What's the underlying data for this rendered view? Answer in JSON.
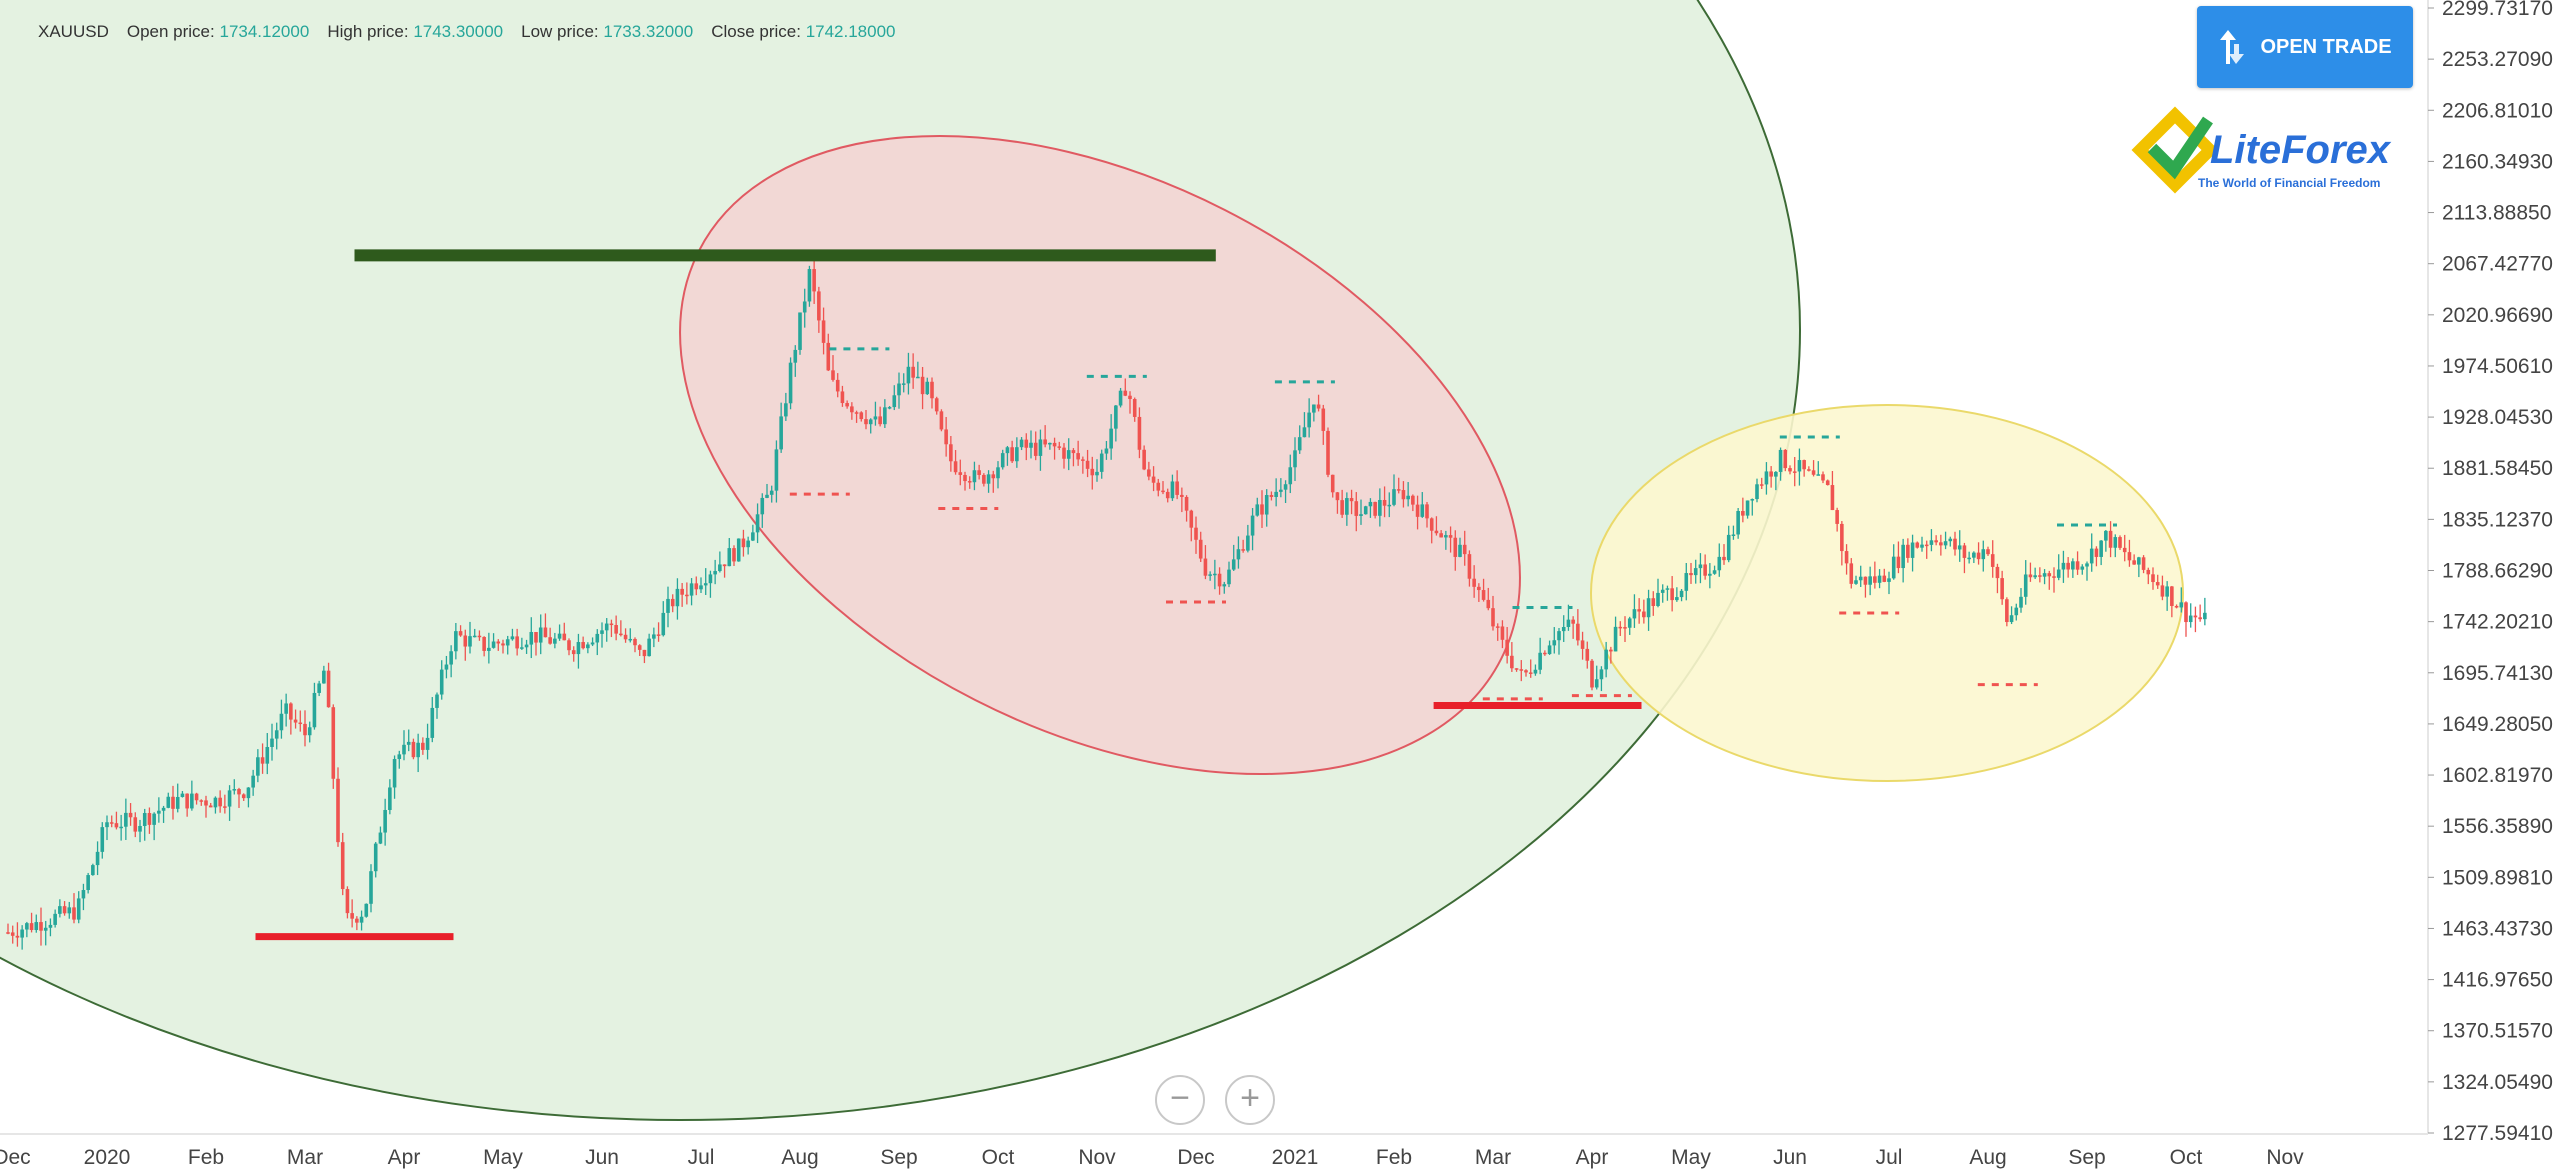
{
  "symbol": "XAUUSD",
  "ohlc": [
    {
      "label": "Open price:",
      "value": "1734.12000"
    },
    {
      "label": "High price:",
      "value": "1743.30000"
    },
    {
      "label": "Low price:",
      "value": "1733.32000"
    },
    {
      "label": "Close price:",
      "value": "1742.18000"
    }
  ],
  "open_trade_label": "OPEN TRADE",
  "logo": {
    "brand": "LiteForex",
    "tagline": "The World of Financial Freedom",
    "mark": "®"
  },
  "zoom": {
    "out": "−",
    "in": "+"
  },
  "colors": {
    "up": "#26a69a",
    "down": "#ef5350",
    "resistance": "#2e5a1c",
    "support": "#e8202a",
    "big_ellipse": "#dff0dc",
    "red_ellipse": "#f5d4d2",
    "yellow_ellipse": "#fcf7cf"
  },
  "chart_data": {
    "type": "candlestick",
    "symbol": "XAUUSD",
    "y_ticks": [
      "2299.73170",
      "2253.27090",
      "2206.81010",
      "2160.34930",
      "2113.88850",
      "2067.42770",
      "2020.96690",
      "1974.50610",
      "1928.04530",
      "1881.58450",
      "1835.12370",
      "1788.66290",
      "1742.20210",
      "1695.74130",
      "1649.28050",
      "1602.81970",
      "1556.35890",
      "1509.89810",
      "1463.43730",
      "1416.97650",
      "1370.51570",
      "1324.05490",
      "1277.59410"
    ],
    "ylim": [
      1277.5941,
      2299.7317
    ],
    "x_ticks": [
      "Dec",
      "2020",
      "Feb",
      "Mar",
      "Apr",
      "May",
      "Jun",
      "Jul",
      "Aug",
      "Sep",
      "Oct",
      "Nov",
      "Dec",
      "2021",
      "Feb",
      "Mar",
      "Apr",
      "May",
      "Jun",
      "Jul",
      "Aug",
      "Sep",
      "Oct",
      "Nov"
    ],
    "x_tick_months": [
      0,
      1,
      2,
      3,
      4,
      5,
      6,
      7,
      8,
      9,
      10,
      11,
      12,
      13,
      14,
      15,
      16,
      17,
      18,
      19,
      20,
      21,
      22,
      23
    ],
    "price_path": [
      [
        0.0,
        1460
      ],
      [
        0.7,
        1480
      ],
      [
        1.0,
        1560
      ],
      [
        1.3,
        1560
      ],
      [
        1.7,
        1580
      ],
      [
        2.1,
        1580
      ],
      [
        2.4,
        1590
      ],
      [
        2.8,
        1660
      ],
      [
        3.0,
        1640
      ],
      [
        3.2,
        1700
      ],
      [
        3.4,
        1470
      ],
      [
        3.6,
        1480
      ],
      [
        3.9,
        1620
      ],
      [
        4.2,
        1630
      ],
      [
        4.5,
        1730
      ],
      [
        4.8,
        1720
      ],
      [
        5.3,
        1730
      ],
      [
        5.7,
        1720
      ],
      [
        6.1,
        1740
      ],
      [
        6.4,
        1710
      ],
      [
        6.7,
        1760
      ],
      [
        7.1,
        1790
      ],
      [
        7.4,
        1810
      ],
      [
        7.7,
        1860
      ],
      [
        7.9,
        1970
      ],
      [
        8.1,
        2060
      ],
      [
        8.3,
        1960
      ],
      [
        8.5,
        1940
      ],
      [
        8.8,
        1920
      ],
      [
        9.1,
        1970
      ],
      [
        9.3,
        1950
      ],
      [
        9.5,
        1890
      ],
      [
        9.8,
        1870
      ],
      [
        10.2,
        1900
      ],
      [
        10.6,
        1900
      ],
      [
        11.0,
        1880
      ],
      [
        11.3,
        1960
      ],
      [
        11.5,
        1870
      ],
      [
        11.8,
        1860
      ],
      [
        12.1,
        1790
      ],
      [
        12.3,
        1780
      ],
      [
        12.6,
        1840
      ],
      [
        12.8,
        1860
      ],
      [
        13.0,
        1890
      ],
      [
        13.2,
        1950
      ],
      [
        13.4,
        1850
      ],
      [
        13.7,
        1840
      ],
      [
        14.1,
        1860
      ],
      [
        14.4,
        1830
      ],
      [
        14.7,
        1800
      ],
      [
        14.9,
        1760
      ],
      [
        15.1,
        1720
      ],
      [
        15.3,
        1690
      ],
      [
        15.6,
        1730
      ],
      [
        15.8,
        1740
      ],
      [
        16.0,
        1690
      ],
      [
        16.3,
        1740
      ],
      [
        16.6,
        1760
      ],
      [
        17.0,
        1780
      ],
      [
        17.3,
        1800
      ],
      [
        17.6,
        1860
      ],
      [
        17.9,
        1890
      ],
      [
        18.1,
        1880
      ],
      [
        18.4,
        1860
      ],
      [
        18.6,
        1780
      ],
      [
        18.9,
        1780
      ],
      [
        19.2,
        1810
      ],
      [
        19.5,
        1820
      ],
      [
        19.8,
        1800
      ],
      [
        20.0,
        1810
      ],
      [
        20.2,
        1740
      ],
      [
        20.4,
        1780
      ],
      [
        20.7,
        1790
      ],
      [
        21.0,
        1800
      ],
      [
        21.2,
        1820
      ],
      [
        21.4,
        1800
      ],
      [
        21.7,
        1780
      ],
      [
        22.0,
        1750
      ],
      [
        22.2,
        1742
      ]
    ],
    "levels": [
      {
        "kind": "resistance",
        "price": 2075,
        "from_month": 3.5,
        "to_month": 12.2
      },
      {
        "kind": "support",
        "price": 1456,
        "from_month": 2.5,
        "to_month": 4.5
      },
      {
        "kind": "support",
        "price": 1666,
        "from_month": 14.4,
        "to_month": 16.5
      }
    ],
    "swing_marks": {
      "highs": [
        [
          8.6,
          1990
        ],
        [
          11.2,
          1965
        ],
        [
          13.1,
          1960
        ],
        [
          15.5,
          1755
        ],
        [
          18.2,
          1910
        ],
        [
          21.0,
          1830
        ]
      ],
      "lows": [
        [
          8.2,
          1858
        ],
        [
          9.7,
          1845
        ],
        [
          12.0,
          1760
        ],
        [
          15.2,
          1672
        ],
        [
          16.1,
          1675
        ],
        [
          18.8,
          1750
        ],
        [
          20.2,
          1685
        ]
      ]
    },
    "grid": false,
    "legend": "none"
  }
}
